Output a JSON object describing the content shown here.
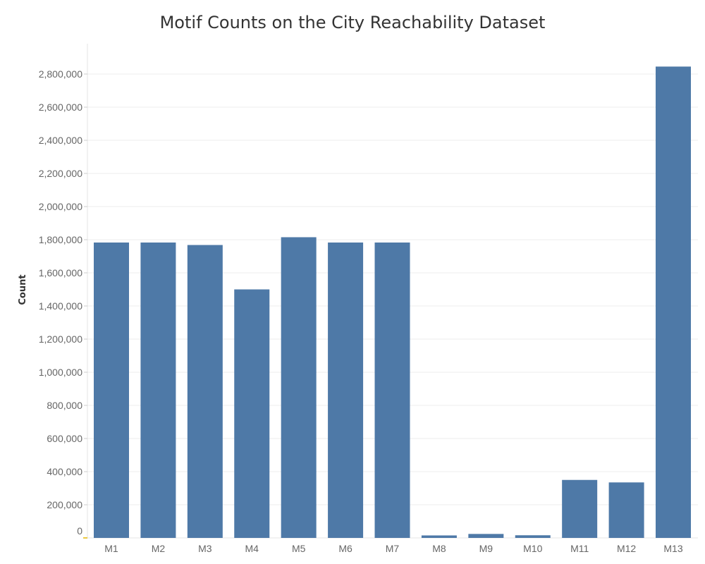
{
  "chart_data": {
    "type": "bar",
    "title": "Motif Counts on the City Reachability Dataset",
    "xlabel": "",
    "ylabel": "Count",
    "categories": [
      "M1",
      "M2",
      "M3",
      "M4",
      "M5",
      "M6",
      "M7",
      "M8",
      "M9",
      "M10",
      "M11",
      "M12",
      "M13"
    ],
    "values": [
      1783000,
      1783000,
      1768000,
      1500000,
      1815000,
      1783000,
      1783000,
      15000,
      24000,
      16000,
      350000,
      335000,
      2845000
    ],
    "ylim": [
      0,
      2900000
    ],
    "yticks": [
      0,
      200000,
      400000,
      600000,
      800000,
      1000000,
      1200000,
      1400000,
      1600000,
      1800000,
      2000000,
      2200000,
      2400000,
      2600000,
      2800000
    ],
    "ytick_labels": [
      "0",
      "200,000",
      "400,000",
      "600,000",
      "800,000",
      "1,000,000",
      "1,200,000",
      "1,400,000",
      "1,600,000",
      "1,800,000",
      "2,000,000",
      "2,200,000",
      "2,400,000",
      "2,600,000",
      "2,800,000"
    ],
    "bar_color": "#4e79a7",
    "grid": true,
    "legend": "none"
  }
}
